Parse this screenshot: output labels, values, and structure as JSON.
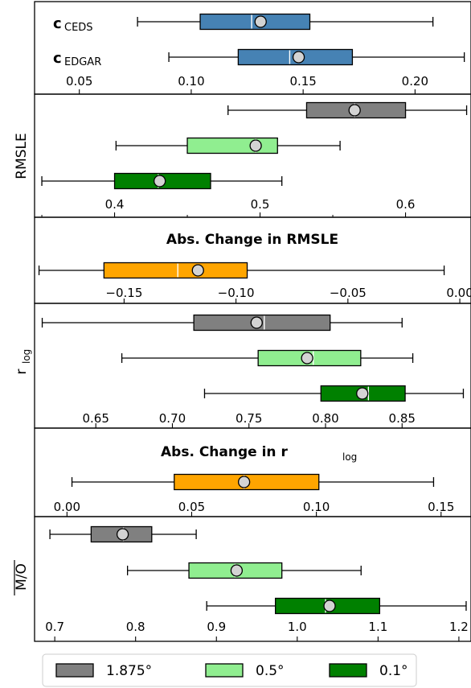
{
  "chart_data": [
    {
      "type": "box",
      "xlim": [
        0.03,
        0.225
      ],
      "ticks": [
        "0.05",
        "0.10",
        "0.15",
        "0.20"
      ],
      "tick_values": [
        0.05,
        0.1,
        0.15,
        0.2
      ],
      "rows": [
        {
          "label_main": "c",
          "label_sub": "CEDS",
          "color": "#4682b4",
          "whisker_low": 0.076,
          "q1": 0.104,
          "median": 0.127,
          "q3": 0.153,
          "whisker_high": 0.208,
          "mean": 0.131
        },
        {
          "label_main": "c",
          "label_sub": "EDGAR",
          "color": "#4682b4",
          "whisker_low": 0.09,
          "q1": 0.121,
          "median": 0.144,
          "q3": 0.172,
          "whisker_high": 0.222,
          "mean": 0.148
        }
      ]
    },
    {
      "type": "box",
      "ylabel": "RMSLE",
      "xlim": [
        0.345,
        0.645
      ],
      "ticks": [
        "0.4",
        "0.5",
        "0.6"
      ],
      "tick_values": [
        0.4,
        0.5,
        0.6
      ],
      "minor_step": 0.05,
      "rows": [
        {
          "series": "1.875°",
          "color": "#808080",
          "whisker_low": 0.478,
          "q1": 0.532,
          "median": 0.565,
          "q3": 0.6,
          "whisker_high": 0.642,
          "mean": 0.565
        },
        {
          "series": "0.5°",
          "color": "#90ee90",
          "whisker_low": 0.401,
          "q1": 0.45,
          "median": 0.497,
          "q3": 0.512,
          "whisker_high": 0.555,
          "mean": 0.497
        },
        {
          "series": "0.1°",
          "color": "#008000",
          "whisker_low": 0.35,
          "q1": 0.4,
          "median": 0.43,
          "q3": 0.466,
          "whisker_high": 0.515,
          "mean": 0.431
        }
      ]
    },
    {
      "type": "box",
      "title": "Abs. Change in RMSLE",
      "xlim": [
        -0.19,
        0.005
      ],
      "ticks": [
        "−0.15",
        "−0.10",
        "−0.05",
        "0.00"
      ],
      "tick_values": [
        -0.15,
        -0.1,
        -0.05,
        0.0
      ],
      "rows": [
        {
          "series": "difference",
          "color": "#ffa500",
          "whisker_low": -0.188,
          "q1": -0.159,
          "median": -0.126,
          "q3": -0.095,
          "whisker_high": -0.007,
          "mean": -0.117
        }
      ]
    },
    {
      "type": "box",
      "ylabel_main": "r",
      "ylabel_sub": "log",
      "xlim": [
        0.61,
        0.895
      ],
      "ticks": [
        "0.65",
        "0.70",
        "0.75",
        "0.80",
        "0.85"
      ],
      "tick_values": [
        0.65,
        0.7,
        0.75,
        0.8,
        0.85
      ],
      "rows": [
        {
          "series": "1.875°",
          "color": "#808080",
          "whisker_low": 0.615,
          "q1": 0.714,
          "median": 0.76,
          "q3": 0.803,
          "whisker_high": 0.85,
          "mean": 0.755
        },
        {
          "series": "0.5°",
          "color": "#90ee90",
          "whisker_low": 0.667,
          "q1": 0.756,
          "median": 0.792,
          "q3": 0.823,
          "whisker_high": 0.857,
          "mean": 0.788
        },
        {
          "series": "0.1°",
          "color": "#008000",
          "whisker_low": 0.721,
          "q1": 0.797,
          "median": 0.828,
          "q3": 0.852,
          "whisker_high": 0.89,
          "mean": 0.824
        }
      ]
    },
    {
      "type": "box",
      "title_main": "Abs. Change in r",
      "title_sub": "log",
      "xlim": [
        -0.013,
        0.162
      ],
      "ticks": [
        "0.00",
        "0.05",
        "0.10",
        "0.15"
      ],
      "tick_values": [
        0.0,
        0.05,
        0.1,
        0.15
      ],
      "rows": [
        {
          "series": "difference",
          "color": "#ffa500",
          "whisker_low": 0.002,
          "q1": 0.043,
          "median": 0.071,
          "q3": 0.101,
          "whisker_high": 0.147,
          "mean": 0.071
        }
      ]
    },
    {
      "type": "box",
      "ylabel": "M/O",
      "xlim": [
        0.675,
        1.215
      ],
      "ticks": [
        "0.7",
        "0.8",
        "0.9",
        "1.0",
        "1.1",
        "1.2"
      ],
      "tick_values": [
        0.7,
        0.8,
        0.9,
        1.0,
        1.1,
        1.2
      ],
      "rows": [
        {
          "series": "1.875°",
          "color": "#808080",
          "whisker_low": 0.694,
          "q1": 0.745,
          "median": 0.785,
          "q3": 0.82,
          "whisker_high": 0.875,
          "mean": 0.784
        },
        {
          "series": "0.5°",
          "color": "#90ee90",
          "whisker_low": 0.79,
          "q1": 0.866,
          "median": 0.923,
          "q3": 0.981,
          "whisker_high": 1.079,
          "mean": 0.925
        },
        {
          "series": "0.1°",
          "color": "#008000",
          "whisker_low": 0.888,
          "q1": 0.973,
          "median": 1.035,
          "q3": 1.102,
          "whisker_high": 1.209,
          "mean": 1.04
        }
      ]
    }
  ],
  "legend": {
    "placement": "bottom",
    "entries": [
      {
        "label": "1.875°",
        "color": "#808080"
      },
      {
        "label": "0.5°",
        "color": "#90ee90"
      },
      {
        "label": "0.1°",
        "color": "#008000"
      }
    ]
  }
}
